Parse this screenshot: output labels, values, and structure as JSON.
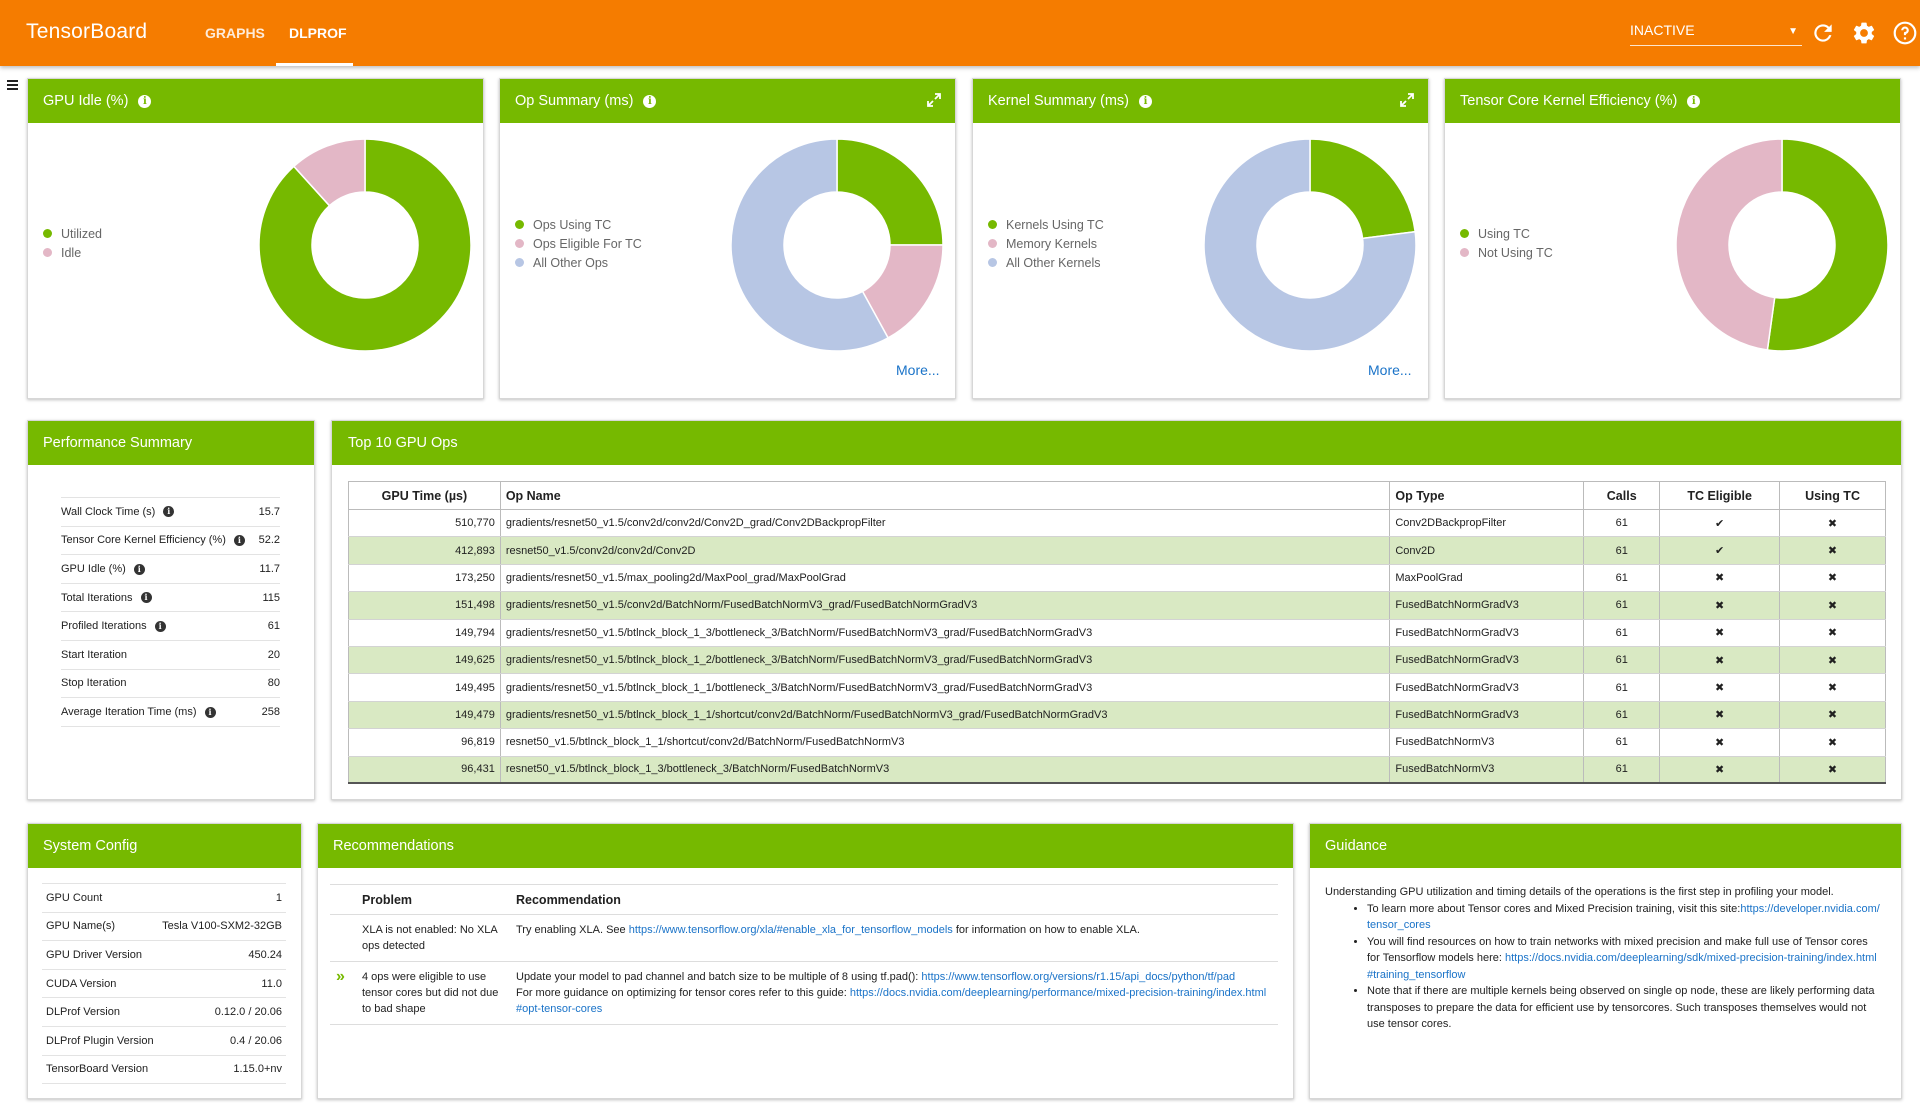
{
  "header": {
    "brand": "TensorBoard",
    "tabs": [
      {
        "label": "GRAPHS",
        "active": false
      },
      {
        "label": "DLPROF",
        "active": true
      }
    ],
    "run_selector": "INACTIVE",
    "icons": [
      "refresh-icon",
      "settings-icon",
      "help-icon"
    ],
    "accent_color": "#f57c00"
  },
  "colors": {
    "green": "#76b900",
    "pink": "#e3b7c6",
    "blue": "#b7c6e4",
    "row_alt": "#d9e9c3"
  },
  "summary_cards": [
    {
      "title": "GPU Idle (%)",
      "legend": [
        "Utilized",
        "Idle"
      ],
      "values": [
        88.3,
        11.7
      ]
    },
    {
      "title": "Op Summary (ms)",
      "legend": [
        "Ops Using TC",
        "Ops Eligible For TC",
        "All Other Ops"
      ],
      "values": [
        25,
        17,
        58
      ],
      "more": "More..."
    },
    {
      "title": "Kernel Summary (ms)",
      "legend": [
        "Kernels Using TC",
        "Memory Kernels",
        "All Other Kernels"
      ],
      "values": [
        23,
        0,
        77
      ],
      "more": "More..."
    },
    {
      "title": "Tensor Core Kernel Efficiency (%)",
      "legend": [
        "Using TC",
        "Not Using TC"
      ],
      "values": [
        52.2,
        47.8
      ]
    }
  ],
  "performance_summary": {
    "title": "Performance Summary",
    "rows": [
      {
        "label": "Wall Clock Time (s)",
        "value": "15.7",
        "info": true
      },
      {
        "label": "Tensor Core Kernel Efficiency (%)",
        "value": "52.2",
        "info": true
      },
      {
        "label": "GPU Idle (%)",
        "value": "11.7",
        "info": true
      },
      {
        "label": "Total Iterations",
        "value": "115",
        "info": true
      },
      {
        "label": "Profiled Iterations",
        "value": "61",
        "info": true
      },
      {
        "label": "Start Iteration",
        "value": "20",
        "info": false
      },
      {
        "label": "Stop Iteration",
        "value": "80",
        "info": false
      },
      {
        "label": "Average Iteration Time (ms)",
        "value": "258",
        "info": true
      }
    ]
  },
  "top_ops": {
    "title": "Top 10 GPU Ops",
    "columns": [
      "GPU Time (µs)",
      "Op Name",
      "Op Type",
      "Calls",
      "TC Eligible",
      "Using TC"
    ],
    "rows": [
      [
        "510,770",
        "gradients/resnet50_v1.5/conv2d/conv2d/Conv2D_grad/Conv2DBackpropFilter",
        "Conv2DBackpropFilter",
        "61",
        "✔",
        "✖"
      ],
      [
        "412,893",
        "resnet50_v1.5/conv2d/conv2d/Conv2D",
        "Conv2D",
        "61",
        "✔",
        "✖"
      ],
      [
        "173,250",
        "gradients/resnet50_v1.5/max_pooling2d/MaxPool_grad/MaxPoolGrad",
        "MaxPoolGrad",
        "61",
        "✖",
        "✖"
      ],
      [
        "151,498",
        "gradients/resnet50_v1.5/conv2d/BatchNorm/FusedBatchNormV3_grad/FusedBatchNormGradV3",
        "FusedBatchNormGradV3",
        "61",
        "✖",
        "✖"
      ],
      [
        "149,794",
        "gradients/resnet50_v1.5/btlnck_block_1_3/bottleneck_3/BatchNorm/FusedBatchNormV3_grad/FusedBatchNormGradV3",
        "FusedBatchNormGradV3",
        "61",
        "✖",
        "✖"
      ],
      [
        "149,625",
        "gradients/resnet50_v1.5/btlnck_block_1_2/bottleneck_3/BatchNorm/FusedBatchNormV3_grad/FusedBatchNormGradV3",
        "FusedBatchNormGradV3",
        "61",
        "✖",
        "✖"
      ],
      [
        "149,495",
        "gradients/resnet50_v1.5/btlnck_block_1_1/bottleneck_3/BatchNorm/FusedBatchNormV3_grad/FusedBatchNormGradV3",
        "FusedBatchNormGradV3",
        "61",
        "✖",
        "✖"
      ],
      [
        "149,479",
        "gradients/resnet50_v1.5/btlnck_block_1_1/shortcut/conv2d/BatchNorm/FusedBatchNormV3_grad/FusedBatchNormGradV3",
        "FusedBatchNormGradV3",
        "61",
        "✖",
        "✖"
      ],
      [
        "96,819",
        "resnet50_v1.5/btlnck_block_1_1/shortcut/conv2d/BatchNorm/FusedBatchNormV3",
        "FusedBatchNormV3",
        "61",
        "✖",
        "✖"
      ],
      [
        "96,431",
        "resnet50_v1.5/btlnck_block_1_3/bottleneck_3/BatchNorm/FusedBatchNormV3",
        "FusedBatchNormV3",
        "61",
        "✖",
        "✖"
      ]
    ]
  },
  "system_config": {
    "title": "System Config",
    "rows": [
      {
        "label": "GPU Count",
        "value": "1"
      },
      {
        "label": "GPU Name(s)",
        "value": "Tesla V100-SXM2-32GB"
      },
      {
        "label": "GPU Driver Version",
        "value": "450.24"
      },
      {
        "label": "CUDA Version",
        "value": "11.0"
      },
      {
        "label": "DLProf Version",
        "value": "0.12.0 / 20.06"
      },
      {
        "label": "DLProf Plugin Version",
        "value": "0.4 / 20.06"
      },
      {
        "label": "TensorBoard Version",
        "value": "1.15.0+nv"
      }
    ]
  },
  "recommendations": {
    "title": "Recommendations",
    "columns": [
      "Problem",
      "Recommendation"
    ],
    "rows": [
      {
        "problem": "XLA is not enabled: No XLA ops detected",
        "text1": "Try enabling XLA. See ",
        "link1": "https://www.tensorflow.org/xla/#enable_xla_for_tensorflow_models",
        "text2": " for information on how to enable XLA.",
        "link2": "",
        "text3": "",
        "link3": ""
      },
      {
        "problem": "4 ops were eligible to use tensor cores but did not due to bad shape",
        "text1": "Update your model to pad channel and batch size to be multiple of 8 using tf.pad(): ",
        "link1": "https://www.tensorflow.org/versions/r1.15/api_docs/python/tf/pad",
        "text2": " For more guidance on optimizing for tensor cores refer to this guide: ",
        "link2": "https://docs.nvidia.com/deeplearning/performance/mixed-precision-training/index.html#opt-tensor-cores",
        "text3": "",
        "link3": ""
      }
    ]
  },
  "guidance": {
    "title": "Guidance",
    "intro": "Understanding GPU utilization and timing details of the operations is the first step in profiling your model.",
    "items": [
      {
        "text": "To learn more about Tensor cores and Mixed Precision training, visit this site:",
        "link": "https://developer.nvidia.com/tensor_cores"
      },
      {
        "text": "You will find resources on how to train networks with mixed precision and make full use of Tensor cores for Tensorflow models here: ",
        "link": "https://docs.nvidia.com/deeplearning/sdk/mixed-precision-training/index.html#training_tensorflow"
      },
      {
        "text": "Note that if there are multiple kernels being observed on single op node, these are likely performing data transposes to prepare the data for efficient use by tensorcores. Such transposes themselves would not use tensor cores.",
        "link": ""
      }
    ]
  }
}
